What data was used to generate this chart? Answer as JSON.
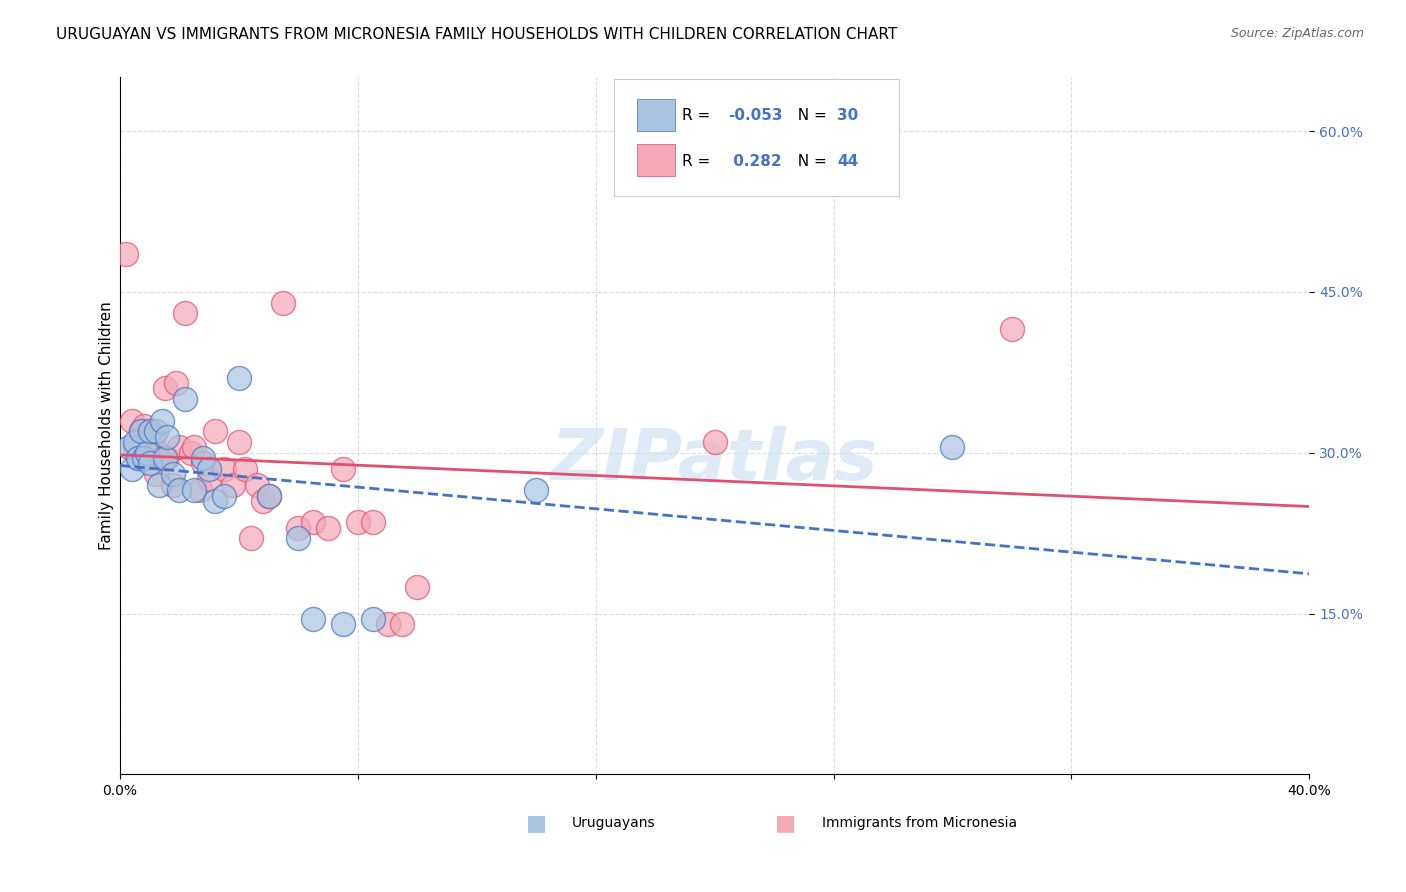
{
  "title": "URUGUAYAN VS IMMIGRANTS FROM MICRONESIA FAMILY HOUSEHOLDS WITH CHILDREN CORRELATION CHART",
  "source": "Source: ZipAtlas.com",
  "ylabel": "Family Households with Children",
  "xlabel": "",
  "xlim": [
    0.0,
    0.4
  ],
  "ylim": [
    0.0,
    0.65
  ],
  "yticks": [
    0.15,
    0.3,
    0.45,
    0.6
  ],
  "ytick_labels": [
    "15.0%",
    "30.0%",
    "45.0%",
    "60.0%"
  ],
  "xticks": [
    0.0,
    0.08,
    0.16,
    0.24,
    0.32,
    0.4
  ],
  "xtick_labels": [
    "0.0%",
    "",
    "",
    "",
    "",
    "40.0%"
  ],
  "uruguayan_R": -0.053,
  "uruguayan_N": 30,
  "micronesia_R": 0.282,
  "micronesia_N": 44,
  "blue_color": "#a8c4e0",
  "pink_color": "#f4a8b8",
  "blue_line_color": "#4472c4",
  "pink_line_color": "#e05070",
  "watermark": "ZIPatlas",
  "uruguayan_x": [
    0.003,
    0.004,
    0.005,
    0.006,
    0.007,
    0.008,
    0.009,
    0.01,
    0.01,
    0.012,
    0.013,
    0.014,
    0.015,
    0.016,
    0.018,
    0.02,
    0.022,
    0.025,
    0.028,
    0.03,
    0.032,
    0.035,
    0.04,
    0.05,
    0.06,
    0.065,
    0.075,
    0.085,
    0.14,
    0.28
  ],
  "uruguayan_y": [
    0.305,
    0.285,
    0.31,
    0.295,
    0.32,
    0.295,
    0.3,
    0.32,
    0.29,
    0.32,
    0.27,
    0.33,
    0.295,
    0.315,
    0.28,
    0.265,
    0.35,
    0.265,
    0.295,
    0.285,
    0.255,
    0.26,
    0.37,
    0.26,
    0.22,
    0.145,
    0.14,
    0.145,
    0.265,
    0.305
  ],
  "micronesia_x": [
    0.002,
    0.004,
    0.005,
    0.006,
    0.007,
    0.008,
    0.009,
    0.01,
    0.011,
    0.012,
    0.013,
    0.014,
    0.015,
    0.016,
    0.018,
    0.019,
    0.02,
    0.022,
    0.024,
    0.025,
    0.027,
    0.028,
    0.03,
    0.032,
    0.035,
    0.038,
    0.04,
    0.042,
    0.044,
    0.046,
    0.048,
    0.05,
    0.055,
    0.06,
    0.065,
    0.07,
    0.075,
    0.08,
    0.085,
    0.09,
    0.095,
    0.1,
    0.2,
    0.3
  ],
  "micronesia_y": [
    0.485,
    0.33,
    0.305,
    0.295,
    0.32,
    0.325,
    0.295,
    0.32,
    0.315,
    0.28,
    0.3,
    0.295,
    0.36,
    0.295,
    0.27,
    0.365,
    0.305,
    0.43,
    0.3,
    0.305,
    0.265,
    0.29,
    0.275,
    0.32,
    0.285,
    0.27,
    0.31,
    0.285,
    0.22,
    0.27,
    0.255,
    0.26,
    0.44,
    0.23,
    0.235,
    0.23,
    0.285,
    0.235,
    0.235,
    0.14,
    0.14,
    0.175,
    0.31,
    0.415
  ],
  "background_color": "#ffffff",
  "grid_color": "#cccccc",
  "title_fontsize": 11,
  "axis_label_fontsize": 11,
  "tick_fontsize": 10,
  "legend_fontsize": 11
}
